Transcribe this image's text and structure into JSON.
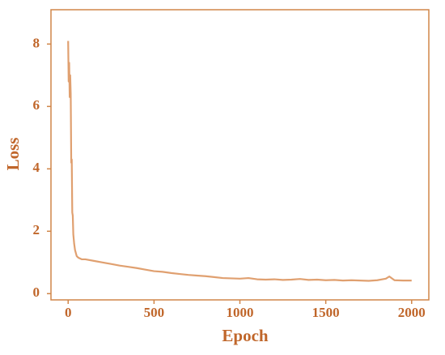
{
  "chart_data": {
    "type": "line",
    "x_label": "Epoch",
    "y_label": "Loss",
    "x": [
      0,
      3,
      6,
      9,
      12,
      15,
      18,
      21,
      24,
      27,
      30,
      35,
      40,
      50,
      60,
      80,
      100,
      150,
      200,
      250,
      300,
      350,
      400,
      450,
      500,
      550,
      600,
      650,
      700,
      750,
      800,
      850,
      900,
      950,
      1000,
      1050,
      1100,
      1150,
      1200,
      1250,
      1300,
      1350,
      1400,
      1450,
      1500,
      1550,
      1600,
      1650,
      1700,
      1750,
      1800,
      1850,
      1870,
      1900,
      1950,
      2000
    ],
    "values": [
      8.1,
      6.8,
      7.4,
      6.3,
      7.0,
      6.4,
      4.2,
      4.3,
      2.6,
      2.5,
      1.9,
      1.6,
      1.4,
      1.2,
      1.15,
      1.1,
      1.1,
      1.05,
      1.0,
      0.95,
      0.9,
      0.86,
      0.82,
      0.77,
      0.72,
      0.7,
      0.66,
      0.63,
      0.6,
      0.58,
      0.56,
      0.53,
      0.5,
      0.49,
      0.48,
      0.5,
      0.46,
      0.45,
      0.46,
      0.44,
      0.45,
      0.47,
      0.44,
      0.45,
      0.43,
      0.44,
      0.42,
      0.43,
      0.42,
      0.41,
      0.43,
      0.48,
      0.55,
      0.43,
      0.42,
      0.42
    ],
    "color": "#e0a070",
    "axis_color": "#d08548",
    "xlim": [
      -100,
      2100
    ],
    "ylim": [
      -0.2,
      9.1
    ],
    "xticks": [
      0,
      500,
      1000,
      1500,
      2000
    ],
    "yticks": [
      0,
      2,
      4,
      6,
      8
    ]
  }
}
